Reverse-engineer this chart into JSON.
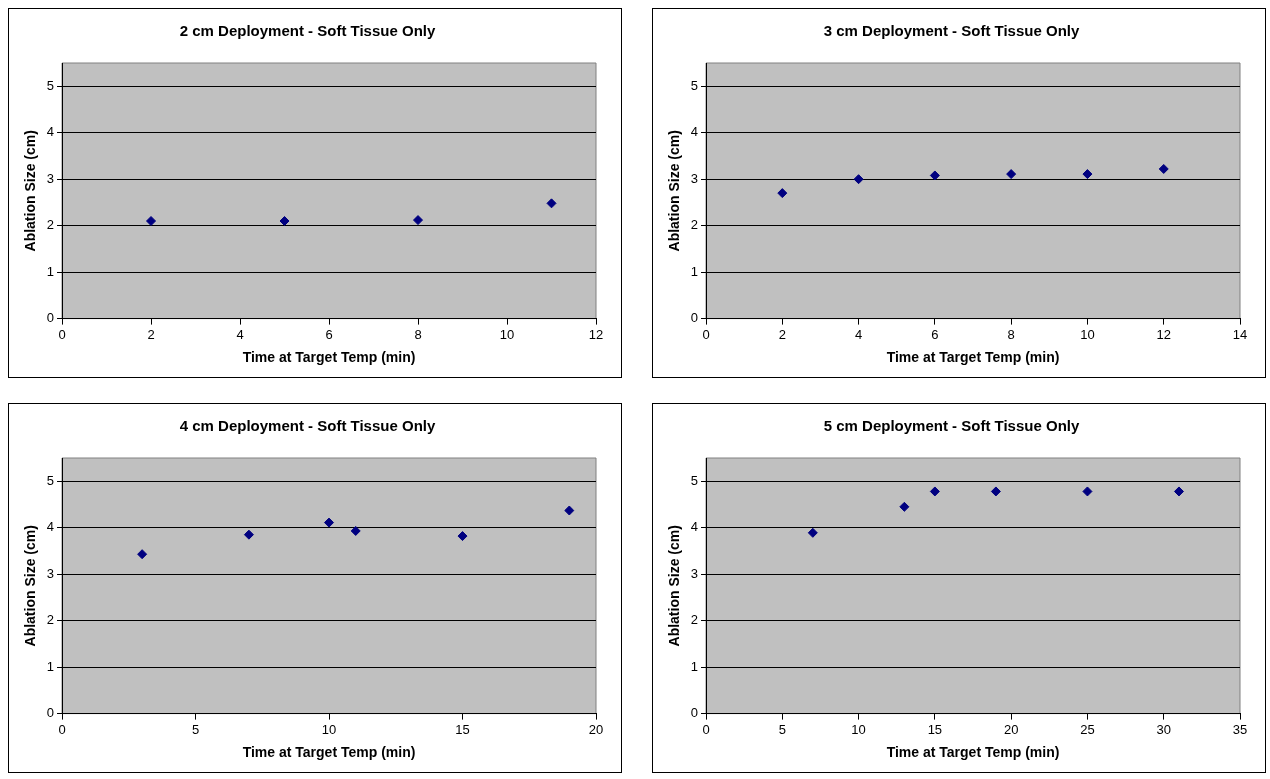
{
  "chart_data": [
    {
      "type": "scatter",
      "title": "2 cm Deployment - Soft Tissue Only",
      "xlabel": "Time at Target Temp (min)",
      "ylabel": "Ablation Size (cm)",
      "x": [
        2,
        5,
        8,
        11
      ],
      "values": [
        2.1,
        2.1,
        2.12,
        2.48
      ],
      "color": "#000080",
      "marker": "diamond",
      "xlim": [
        0,
        12
      ],
      "xticks": [
        0,
        2,
        4,
        6,
        8,
        10,
        12
      ],
      "ylim": [
        0,
        5.5
      ],
      "yticks": [
        0,
        1,
        2,
        3,
        4,
        5
      ],
      "grid": "y",
      "legend": false
    },
    {
      "type": "scatter",
      "title": "3 cm Deployment - Soft Tissue Only",
      "xlabel": "Time at Target Temp (min)",
      "ylabel": "Ablation Size (cm)",
      "x": [
        2,
        4,
        6,
        8,
        10,
        12
      ],
      "values": [
        2.7,
        3.0,
        3.08,
        3.11,
        3.11,
        3.22
      ],
      "color": "#000080",
      "marker": "diamond",
      "xlim": [
        0,
        14
      ],
      "xticks": [
        0,
        2,
        4,
        6,
        8,
        10,
        12,
        14
      ],
      "ylim": [
        0,
        5.5
      ],
      "yticks": [
        0,
        1,
        2,
        3,
        4,
        5
      ],
      "grid": "y",
      "legend": false
    },
    {
      "type": "scatter",
      "title": "4 cm Deployment - Soft Tissue Only",
      "xlabel": "Time at Target Temp (min)",
      "ylabel": "Ablation Size (cm)",
      "x": [
        3,
        7,
        10,
        11,
        15,
        19
      ],
      "values": [
        3.43,
        3.85,
        4.11,
        3.93,
        3.82,
        4.37
      ],
      "color": "#000080",
      "marker": "diamond",
      "xlim": [
        0,
        20
      ],
      "xticks": [
        0,
        5,
        10,
        15,
        20
      ],
      "ylim": [
        0,
        5.5
      ],
      "yticks": [
        0,
        1,
        2,
        3,
        4,
        5
      ],
      "grid": "y",
      "legend": false
    },
    {
      "type": "scatter",
      "title": "5 cm Deployment - Soft Tissue Only",
      "xlabel": "Time at Target Temp (min)",
      "ylabel": "Ablation Size (cm)",
      "x": [
        7,
        13,
        15,
        19,
        25,
        31
      ],
      "values": [
        3.89,
        4.45,
        4.78,
        4.78,
        4.78,
        4.78
      ],
      "color": "#000080",
      "marker": "diamond",
      "xlim": [
        0,
        35
      ],
      "xticks": [
        0,
        5,
        10,
        15,
        20,
        25,
        30,
        35
      ],
      "ylim": [
        0,
        5.5
      ],
      "yticks": [
        0,
        1,
        2,
        3,
        4,
        5
      ],
      "grid": "y",
      "legend": false
    }
  ]
}
